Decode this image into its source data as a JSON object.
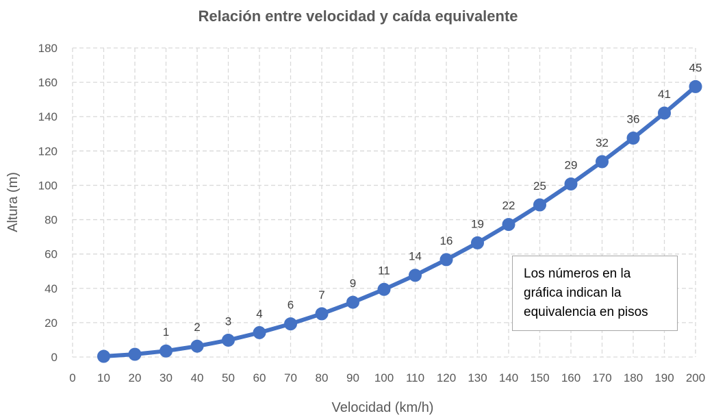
{
  "chart_data": {
    "type": "line",
    "title": "Relación entre velocidad y caída equivalente",
    "xlabel": "Velocidad (km/h)",
    "ylabel": "Altura (m)",
    "xlim": [
      0,
      200
    ],
    "ylim": [
      0,
      180
    ],
    "x_ticks": [
      "0",
      "10",
      "20",
      "30",
      "40",
      "50",
      "60",
      "70",
      "80",
      "90",
      "100",
      "110",
      "120",
      "130",
      "140",
      "150",
      "160",
      "170",
      "180",
      "190",
      "200"
    ],
    "y_ticks": [
      "0",
      "20",
      "40",
      "60",
      "80",
      "100",
      "120",
      "140",
      "160",
      "180"
    ],
    "grid": true,
    "legend": "none",
    "series": [
      {
        "color": "#4472c4",
        "x": [
          10,
          20,
          30,
          40,
          50,
          60,
          70,
          80,
          90,
          100,
          110,
          120,
          130,
          140,
          150,
          160,
          170,
          180,
          190,
          200
        ],
        "y": [
          0.4,
          1.6,
          3.5,
          6.3,
          9.8,
          14.2,
          19.3,
          25.2,
          31.9,
          39.4,
          47.6,
          56.7,
          66.5,
          77.2,
          88.6,
          100.8,
          113.8,
          127.5,
          142.1,
          157.5
        ],
        "labels": [
          "",
          "",
          "1",
          "2",
          "3",
          "4",
          "6",
          "7",
          "9",
          "11",
          "14",
          "16",
          "19",
          "22",
          "25",
          "29",
          "32",
          "36",
          "41",
          "45"
        ]
      }
    ]
  },
  "note": {
    "text": "Los números en la gráfica indican la equivalencia en pisos"
  }
}
